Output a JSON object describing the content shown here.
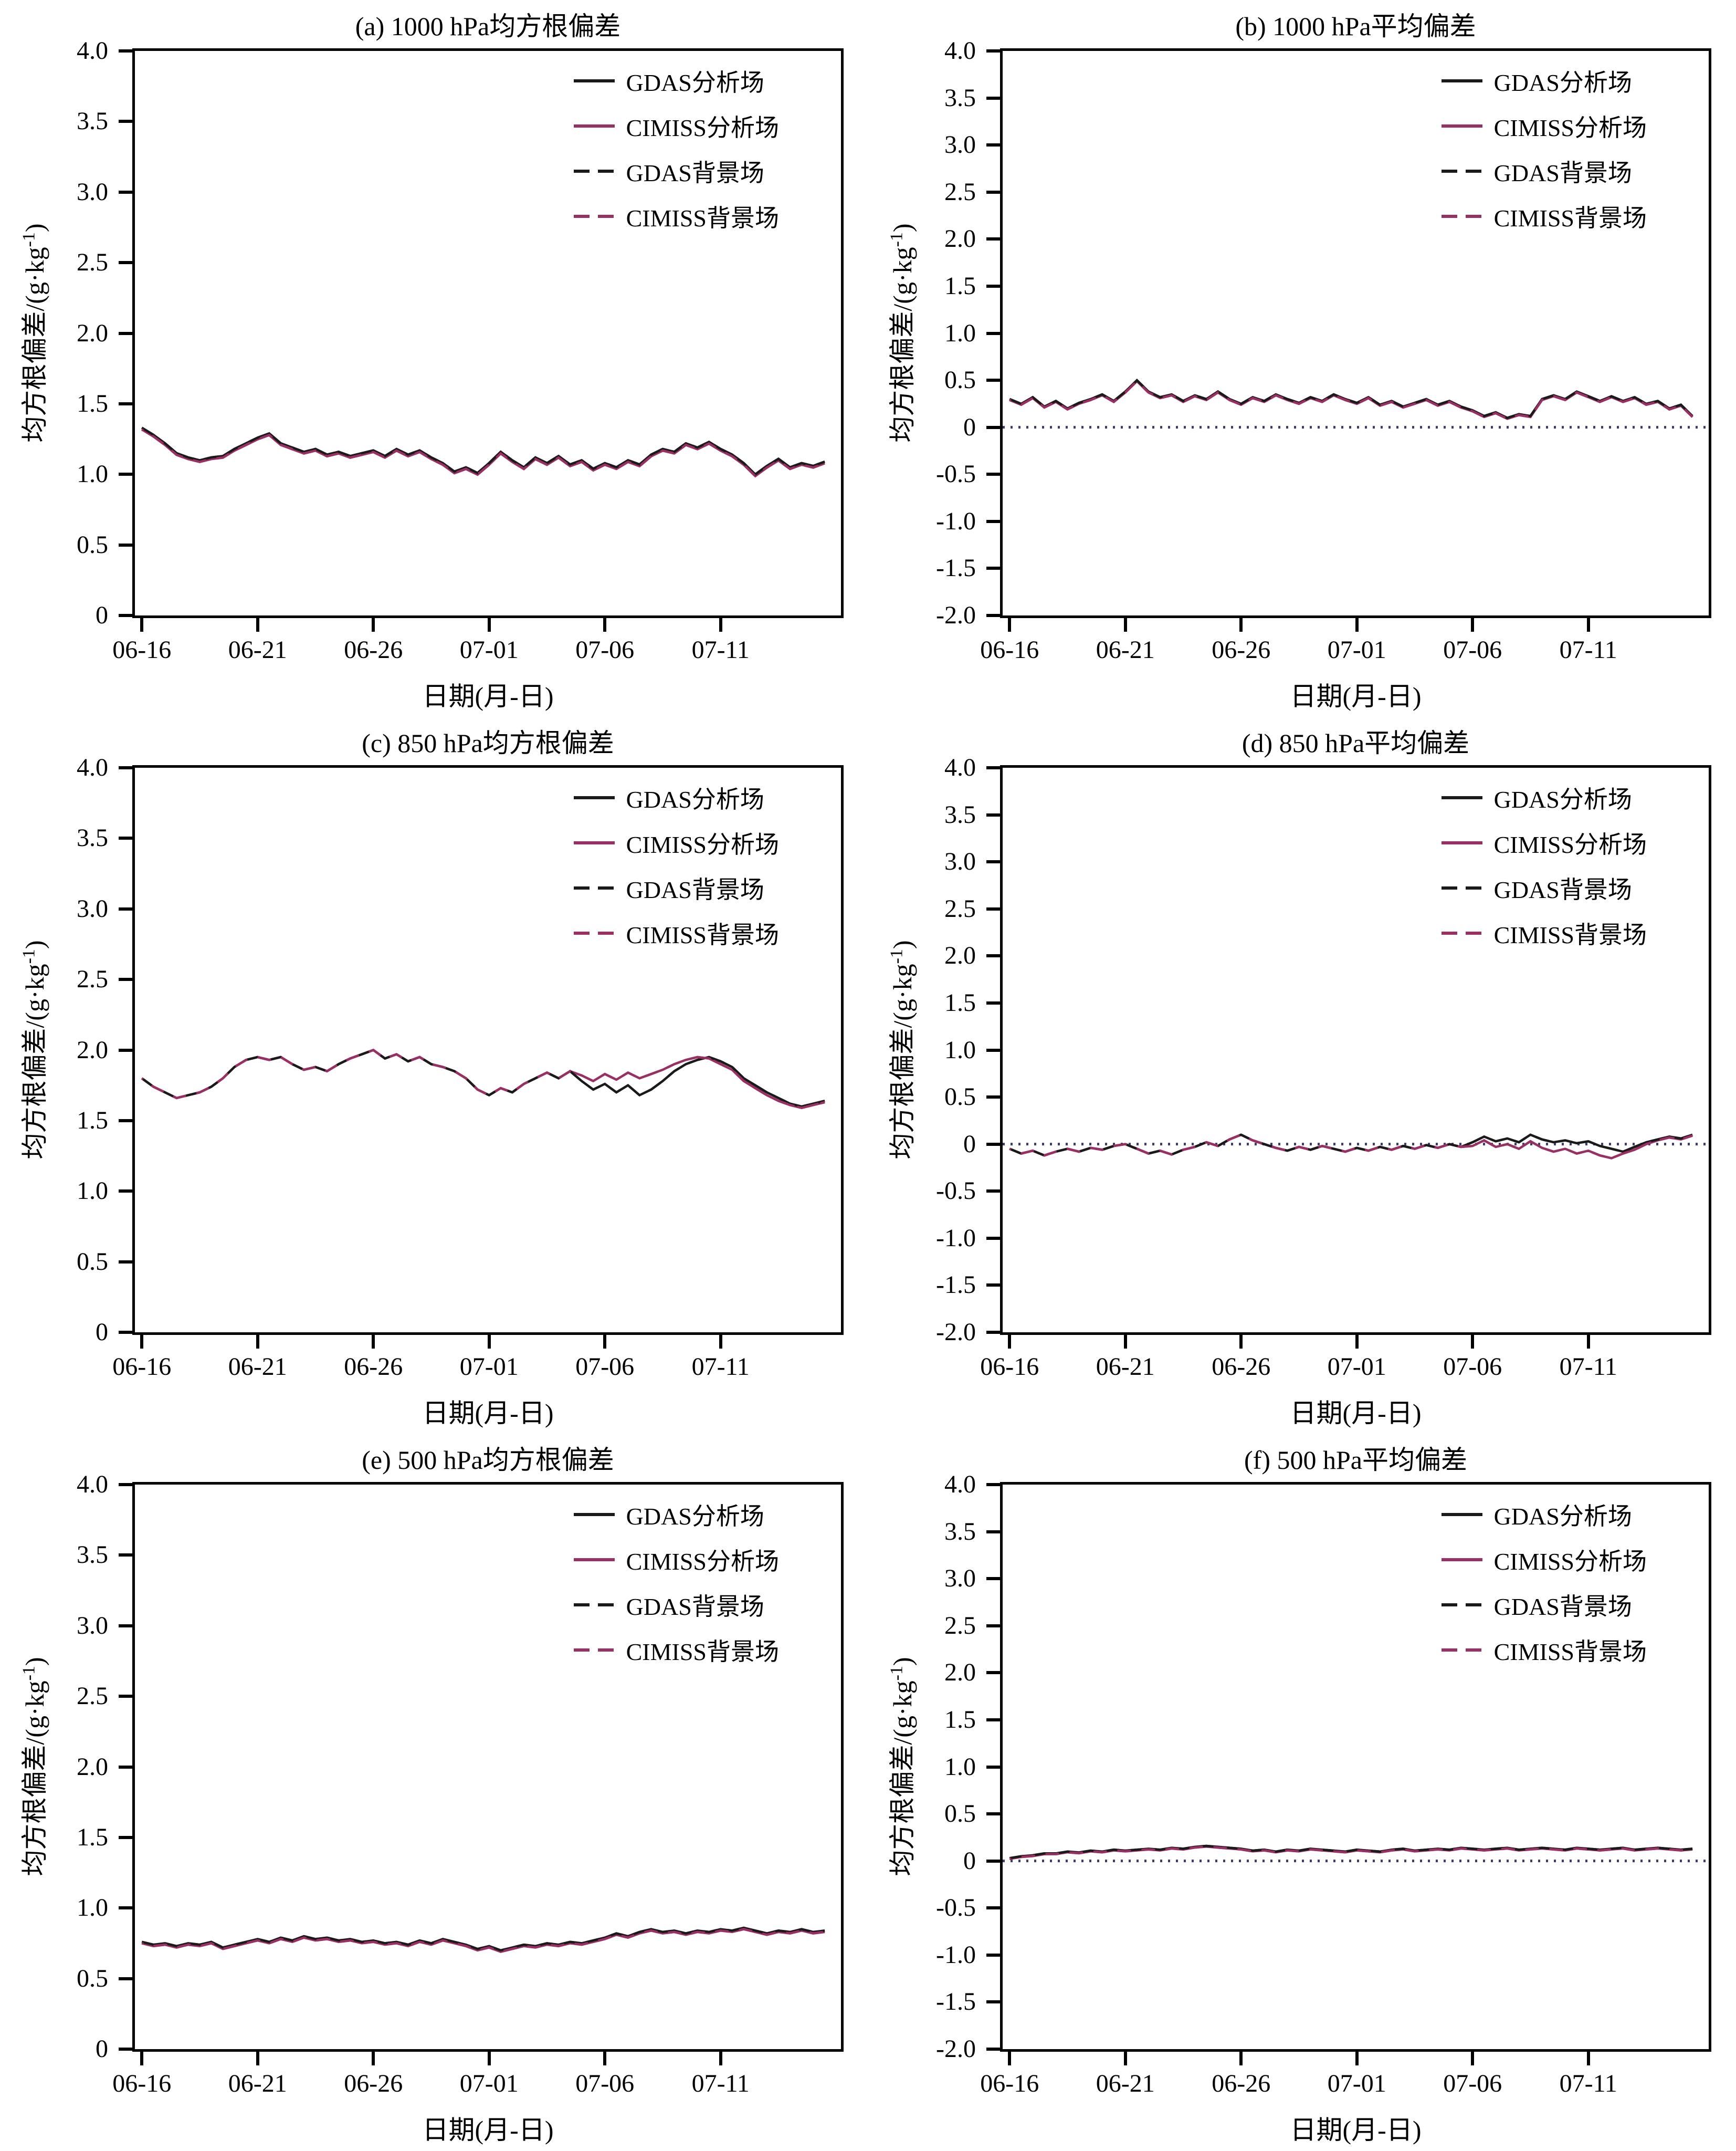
{
  "figure": {
    "background": "#ffffff",
    "axis_color": "#000000",
    "xlabel": "日期(月-日)",
    "ylabel_main": "均方根偏差/(g·kg",
    "ylabel_sup": "-1",
    "ylabel_close": ")",
    "zero_line_color": "#3c3c64",
    "colors": {
      "gdas_black": "#1a1a1a",
      "cimiss_magenta": "#992f63"
    },
    "x_range_days": [
      -0.3,
      30.2
    ],
    "x_days": {
      "start": 0,
      "step": 0.5,
      "count": 60
    },
    "x_tick_days": [
      0,
      5,
      10,
      15,
      20,
      25
    ],
    "x_tick_labels": [
      "06-16",
      "06-21",
      "06-26",
      "07-01",
      "07-06",
      "07-11"
    ]
  },
  "chart_data": [
    {
      "id": "a",
      "type": "line",
      "title": "(a) 1000 hPa均方根偏差",
      "ylim": [
        0,
        4
      ],
      "ytick_values": [
        4,
        3.5,
        3,
        2.5,
        2,
        1.5,
        1,
        0.5,
        0
      ],
      "ytick_labels": [
        "4.0",
        "3.5",
        "3.0",
        "2.5",
        "2.0",
        "1.5",
        "1.0",
        "0.5",
        "0"
      ],
      "zero_line": false,
      "legend_position": "top-right",
      "series": [
        {
          "name": "GDAS分析场",
          "color": "#1a1a1a",
          "style": "solid",
          "values": [
            1.33,
            1.28,
            1.22,
            1.15,
            1.12,
            1.1,
            1.12,
            1.13,
            1.18,
            1.22,
            1.26,
            1.29,
            1.22,
            1.19,
            1.16,
            1.18,
            1.14,
            1.16,
            1.13,
            1.15,
            1.17,
            1.13,
            1.18,
            1.14,
            1.17,
            1.12,
            1.08,
            1.02,
            1.05,
            1.01,
            1.08,
            1.16,
            1.1,
            1.05,
            1.12,
            1.08,
            1.13,
            1.07,
            1.1,
            1.04,
            1.08,
            1.05,
            1.1,
            1.07,
            1.14,
            1.18,
            1.16,
            1.22,
            1.19,
            1.23,
            1.18,
            1.14,
            1.08,
            1.0,
            1.06,
            1.11,
            1.05,
            1.08,
            1.06,
            1.09
          ]
        },
        {
          "name": "CIMISS分析场",
          "color": "#992f63",
          "style": "solid",
          "values_ref": 0,
          "offset": -0.012
        },
        {
          "name": "GDAS背景场",
          "color": "#1a1a1a",
          "style": "dashed",
          "values_ref": 0,
          "offset": 0
        },
        {
          "name": "CIMISS背景场",
          "color": "#992f63",
          "style": "dashed",
          "values_ref": 1,
          "offset": 0
        }
      ]
    },
    {
      "id": "b",
      "type": "line",
      "title": "(b) 1000 hPa平均偏差",
      "ylim": [
        -2,
        4
      ],
      "ytick_values": [
        4,
        3.5,
        3,
        2.5,
        2,
        1.5,
        1,
        0.5,
        0,
        -0.5,
        -1,
        -1.5,
        -2
      ],
      "ytick_labels": [
        "4.0",
        "3.5",
        "3.0",
        "2.5",
        "2.0",
        "1.5",
        "1.0",
        "0.5",
        "0",
        "-0.5",
        "-1.0",
        "-1.5",
        "-2.0"
      ],
      "zero_line": true,
      "legend_position": "top-right",
      "series": [
        {
          "name": "GDAS分析场",
          "color": "#1a1a1a",
          "style": "solid",
          "values": [
            0.3,
            0.25,
            0.32,
            0.22,
            0.28,
            0.2,
            0.26,
            0.3,
            0.35,
            0.28,
            0.38,
            0.5,
            0.38,
            0.32,
            0.35,
            0.28,
            0.34,
            0.3,
            0.38,
            0.3,
            0.25,
            0.32,
            0.28,
            0.35,
            0.3,
            0.26,
            0.32,
            0.28,
            0.35,
            0.3,
            0.26,
            0.32,
            0.24,
            0.28,
            0.22,
            0.26,
            0.3,
            0.24,
            0.28,
            0.22,
            0.18,
            0.12,
            0.16,
            0.1,
            0.14,
            0.12,
            0.3,
            0.34,
            0.3,
            0.38,
            0.33,
            0.28,
            0.33,
            0.28,
            0.32,
            0.25,
            0.28,
            0.2,
            0.24,
            0.12
          ]
        },
        {
          "name": "CIMISS分析场",
          "color": "#992f63",
          "style": "solid",
          "values_ref": 0,
          "offset": -0.01
        },
        {
          "name": "GDAS背景场",
          "color": "#1a1a1a",
          "style": "dashed",
          "values_ref": 0,
          "offset": 0
        },
        {
          "name": "CIMISS背景场",
          "color": "#992f63",
          "style": "dashed",
          "values_ref": 1,
          "offset": 0
        }
      ]
    },
    {
      "id": "c",
      "type": "line",
      "title": "(c) 850 hPa均方根偏差",
      "ylim": [
        0,
        4
      ],
      "ytick_values": [
        4,
        3.5,
        3,
        2.5,
        2,
        1.5,
        1,
        0.5,
        0
      ],
      "ytick_labels": [
        "4.0",
        "3.5",
        "3.0",
        "2.5",
        "2.0",
        "1.5",
        "1.0",
        "0.5",
        "0"
      ],
      "zero_line": false,
      "legend_position": "top-right",
      "series": [
        {
          "name": "GDAS分析场",
          "color": "#1a1a1a",
          "style": "solid",
          "values": [
            1.8,
            1.74,
            1.7,
            1.66,
            1.68,
            1.7,
            1.74,
            1.8,
            1.88,
            1.93,
            1.95,
            1.93,
            1.95,
            1.9,
            1.86,
            1.88,
            1.85,
            1.9,
            1.94,
            1.97,
            2.0,
            1.94,
            1.97,
            1.92,
            1.95,
            1.9,
            1.88,
            1.85,
            1.8,
            1.72,
            1.68,
            1.73,
            1.7,
            1.76,
            1.8,
            1.84,
            1.8,
            1.85,
            1.78,
            1.72,
            1.76,
            1.7,
            1.75,
            1.68,
            1.72,
            1.78,
            1.85,
            1.9,
            1.93,
            1.95,
            1.92,
            1.88,
            1.8,
            1.75,
            1.7,
            1.66,
            1.62,
            1.6,
            1.62,
            1.64
          ]
        },
        {
          "name": "CIMISS分析场",
          "color": "#992f63",
          "style": "solid",
          "values": [
            1.8,
            1.74,
            1.7,
            1.66,
            1.68,
            1.7,
            1.74,
            1.8,
            1.88,
            1.93,
            1.95,
            1.93,
            1.95,
            1.9,
            1.86,
            1.88,
            1.85,
            1.9,
            1.94,
            1.97,
            2.0,
            1.94,
            1.97,
            1.92,
            1.95,
            1.9,
            1.88,
            1.85,
            1.8,
            1.72,
            1.68,
            1.73,
            1.7,
            1.76,
            1.8,
            1.84,
            1.8,
            1.85,
            1.82,
            1.78,
            1.83,
            1.79,
            1.84,
            1.8,
            1.83,
            1.86,
            1.9,
            1.93,
            1.95,
            1.94,
            1.9,
            1.86,
            1.78,
            1.73,
            1.68,
            1.64,
            1.61,
            1.59,
            1.61,
            1.63
          ]
        },
        {
          "name": "GDAS背景场",
          "color": "#1a1a1a",
          "style": "dashed",
          "values_ref": 0,
          "offset": 0
        },
        {
          "name": "CIMISS背景场",
          "color": "#992f63",
          "style": "dashed",
          "values_ref": 1,
          "offset": 0
        }
      ]
    },
    {
      "id": "d",
      "type": "line",
      "title": "(d) 850 hPa平均偏差",
      "ylim": [
        -2,
        4
      ],
      "ytick_values": [
        4,
        3.5,
        3,
        2.5,
        2,
        1.5,
        1,
        0.5,
        0,
        -0.5,
        -1,
        -1.5,
        -2
      ],
      "ytick_labels": [
        "4.0",
        "3.5",
        "3.0",
        "2.5",
        "2.0",
        "1.5",
        "1.0",
        "0.5",
        "0",
        "-0.5",
        "-1.0",
        "-1.5",
        "-2.0"
      ],
      "zero_line": true,
      "legend_position": "top-right",
      "series": [
        {
          "name": "GDAS分析场",
          "color": "#1a1a1a",
          "style": "solid",
          "values": [
            -0.05,
            -0.1,
            -0.07,
            -0.12,
            -0.08,
            -0.05,
            -0.08,
            -0.04,
            -0.06,
            -0.02,
            0.0,
            -0.05,
            -0.1,
            -0.07,
            -0.11,
            -0.06,
            -0.03,
            0.02,
            -0.02,
            0.05,
            0.1,
            0.04,
            0.0,
            -0.04,
            -0.07,
            -0.03,
            -0.06,
            -0.02,
            -0.05,
            -0.08,
            -0.04,
            -0.07,
            -0.03,
            -0.06,
            -0.02,
            -0.05,
            -0.01,
            -0.04,
            0.0,
            -0.03,
            0.02,
            0.08,
            0.03,
            0.06,
            0.02,
            0.1,
            0.05,
            0.02,
            0.04,
            0.01,
            0.03,
            -0.02,
            -0.05,
            -0.08,
            -0.03,
            0.02,
            0.05,
            0.08,
            0.06,
            0.1
          ]
        },
        {
          "name": "CIMISS分析场",
          "color": "#992f63",
          "style": "solid",
          "values": [
            -0.05,
            -0.1,
            -0.07,
            -0.12,
            -0.08,
            -0.05,
            -0.08,
            -0.04,
            -0.06,
            -0.02,
            0.0,
            -0.05,
            -0.1,
            -0.07,
            -0.11,
            -0.06,
            -0.03,
            0.02,
            -0.02,
            0.05,
            0.1,
            0.04,
            0.0,
            -0.04,
            -0.07,
            -0.03,
            -0.06,
            -0.02,
            -0.05,
            -0.08,
            -0.04,
            -0.07,
            -0.03,
            -0.06,
            -0.02,
            -0.05,
            -0.01,
            -0.04,
            0.0,
            -0.03,
            -0.02,
            0.04,
            -0.03,
            0.0,
            -0.05,
            0.03,
            -0.04,
            -0.08,
            -0.05,
            -0.1,
            -0.07,
            -0.12,
            -0.15,
            -0.1,
            -0.06,
            0.0,
            0.04,
            0.07,
            0.05,
            0.09
          ]
        },
        {
          "name": "GDAS背景场",
          "color": "#1a1a1a",
          "style": "dashed",
          "values_ref": 0,
          "offset": 0
        },
        {
          "name": "CIMISS背景场",
          "color": "#992f63",
          "style": "dashed",
          "values_ref": 1,
          "offset": 0
        }
      ]
    },
    {
      "id": "e",
      "type": "line",
      "title": "(e) 500 hPa均方根偏差",
      "ylim": [
        0,
        4
      ],
      "ytick_values": [
        4,
        3.5,
        3,
        2.5,
        2,
        1.5,
        1,
        0.5,
        0
      ],
      "ytick_labels": [
        "4.0",
        "3.5",
        "3.0",
        "2.5",
        "2.0",
        "1.5",
        "1.0",
        "0.5",
        "0"
      ],
      "zero_line": false,
      "legend_position": "top-right",
      "series": [
        {
          "name": "GDAS分析场",
          "color": "#1a1a1a",
          "style": "solid",
          "values": [
            0.76,
            0.74,
            0.75,
            0.73,
            0.75,
            0.74,
            0.76,
            0.72,
            0.74,
            0.76,
            0.78,
            0.76,
            0.79,
            0.77,
            0.8,
            0.78,
            0.79,
            0.77,
            0.78,
            0.76,
            0.77,
            0.75,
            0.76,
            0.74,
            0.77,
            0.75,
            0.78,
            0.76,
            0.74,
            0.71,
            0.73,
            0.7,
            0.72,
            0.74,
            0.73,
            0.75,
            0.74,
            0.76,
            0.75,
            0.77,
            0.79,
            0.82,
            0.8,
            0.83,
            0.85,
            0.83,
            0.84,
            0.82,
            0.84,
            0.83,
            0.85,
            0.84,
            0.86,
            0.84,
            0.82,
            0.84,
            0.83,
            0.85,
            0.83,
            0.84
          ]
        },
        {
          "name": "CIMISS分析场",
          "color": "#992f63",
          "style": "solid",
          "values_ref": 0,
          "offset": -0.01
        },
        {
          "name": "GDAS背景场",
          "color": "#1a1a1a",
          "style": "dashed",
          "values_ref": 0,
          "offset": 0
        },
        {
          "name": "CIMISS背景场",
          "color": "#992f63",
          "style": "dashed",
          "values_ref": 1,
          "offset": 0
        }
      ]
    },
    {
      "id": "f",
      "type": "line",
      "title": "(f) 500 hPa平均偏差",
      "ylim": [
        -2,
        4
      ],
      "ytick_values": [
        4,
        3.5,
        3,
        2.5,
        2,
        1.5,
        1,
        0.5,
        0,
        -0.5,
        -1,
        -1.5,
        -2
      ],
      "ytick_labels": [
        "4.0",
        "3.5",
        "3.0",
        "2.5",
        "2.0",
        "1.5",
        "1.0",
        "0.5",
        "0",
        "-0.5",
        "-1.0",
        "-1.5",
        "-2.0"
      ],
      "zero_line": true,
      "legend_position": "top-right",
      "series": [
        {
          "name": "GDAS分析场",
          "color": "#1a1a1a",
          "style": "solid",
          "values": [
            0.03,
            0.05,
            0.06,
            0.08,
            0.08,
            0.1,
            0.09,
            0.11,
            0.1,
            0.12,
            0.11,
            0.12,
            0.13,
            0.12,
            0.14,
            0.13,
            0.15,
            0.16,
            0.15,
            0.14,
            0.13,
            0.11,
            0.12,
            0.1,
            0.12,
            0.11,
            0.13,
            0.12,
            0.11,
            0.1,
            0.12,
            0.11,
            0.1,
            0.12,
            0.13,
            0.11,
            0.12,
            0.13,
            0.12,
            0.14,
            0.13,
            0.12,
            0.13,
            0.14,
            0.12,
            0.13,
            0.14,
            0.13,
            0.12,
            0.14,
            0.13,
            0.12,
            0.13,
            0.14,
            0.12,
            0.13,
            0.14,
            0.13,
            0.12,
            0.13
          ]
        },
        {
          "name": "CIMISS分析场",
          "color": "#992f63",
          "style": "solid",
          "values_ref": 0,
          "offset": -0.008
        },
        {
          "name": "GDAS背景场",
          "color": "#1a1a1a",
          "style": "dashed",
          "values_ref": 0,
          "offset": 0
        },
        {
          "name": "CIMISS背景场",
          "color": "#992f63",
          "style": "dashed",
          "values_ref": 1,
          "offset": 0
        }
      ]
    }
  ]
}
